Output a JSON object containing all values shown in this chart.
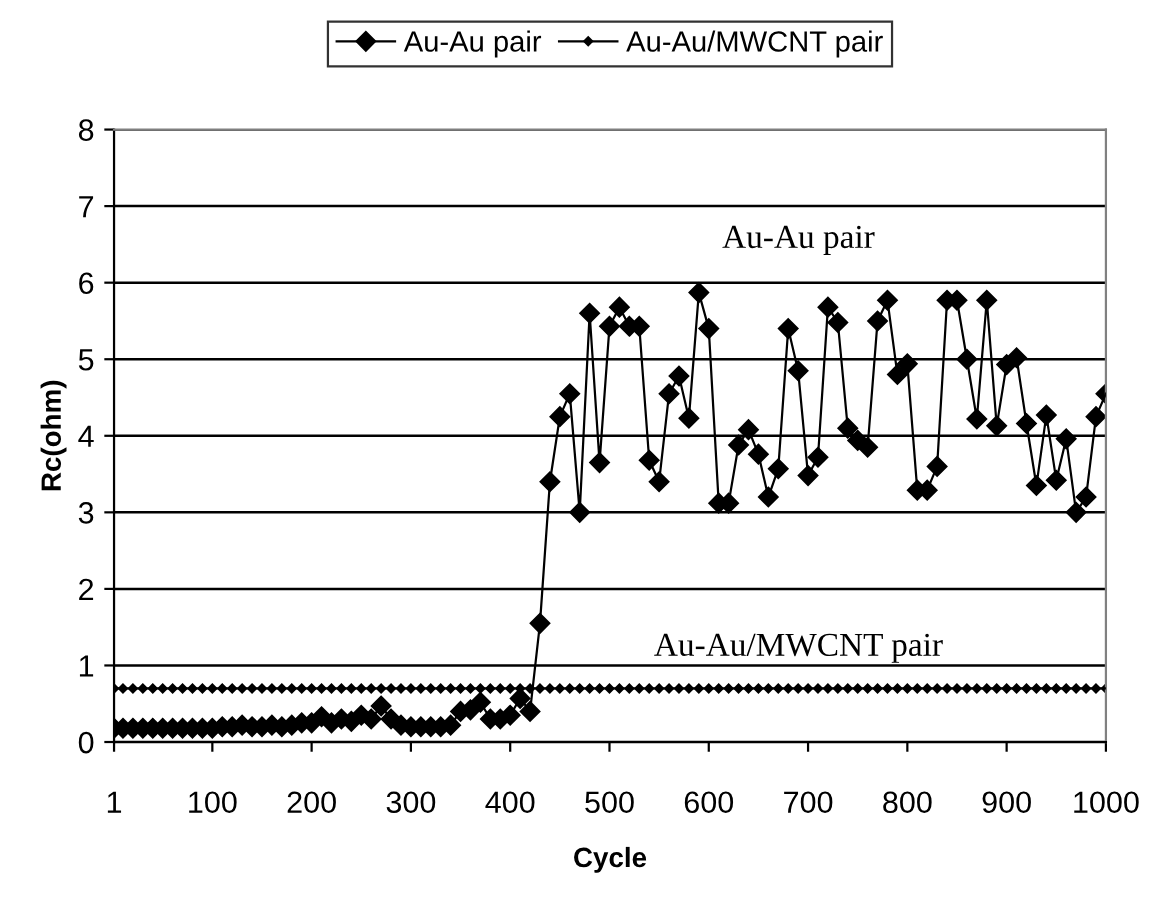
{
  "chart_data": {
    "type": "line",
    "xlabel": "Cycle",
    "ylabel": "Rc(ohm)",
    "x": [
      1,
      10,
      20,
      30,
      40,
      50,
      60,
      70,
      80,
      90,
      100,
      110,
      120,
      130,
      140,
      150,
      160,
      170,
      180,
      190,
      200,
      210,
      220,
      230,
      240,
      250,
      260,
      270,
      280,
      290,
      300,
      310,
      320,
      330,
      340,
      350,
      360,
      370,
      380,
      390,
      400,
      410,
      420,
      430,
      440,
      450,
      460,
      470,
      480,
      490,
      500,
      510,
      520,
      530,
      540,
      550,
      560,
      570,
      580,
      590,
      600,
      610,
      620,
      630,
      640,
      650,
      660,
      670,
      680,
      690,
      700,
      710,
      720,
      730,
      740,
      750,
      760,
      770,
      780,
      790,
      800,
      810,
      820,
      830,
      840,
      850,
      860,
      870,
      880,
      890,
      900,
      910,
      920,
      930,
      940,
      950,
      960,
      970,
      980,
      990,
      1000
    ],
    "series": [
      {
        "name": "Au-Au pair",
        "color": "#000000",
        "marker": "diamond",
        "values": [
          0.18,
          0.18,
          0.18,
          0.18,
          0.18,
          0.18,
          0.18,
          0.18,
          0.18,
          0.18,
          0.18,
          0.2,
          0.2,
          0.22,
          0.2,
          0.2,
          0.22,
          0.2,
          0.22,
          0.25,
          0.25,
          0.33,
          0.25,
          0.3,
          0.27,
          0.35,
          0.3,
          0.47,
          0.3,
          0.22,
          0.2,
          0.2,
          0.2,
          0.2,
          0.22,
          0.4,
          0.42,
          0.52,
          0.3,
          0.3,
          0.35,
          0.57,
          0.4,
          1.55,
          3.4,
          4.25,
          4.55,
          3.0,
          5.6,
          3.65,
          5.43,
          5.68,
          5.43,
          5.43,
          3.68,
          3.4,
          4.55,
          4.78,
          4.23,
          5.87,
          5.4,
          3.12,
          3.12,
          3.88,
          4.08,
          3.76,
          3.2,
          3.57,
          5.4,
          4.85,
          3.48,
          3.72,
          5.68,
          5.48,
          4.1,
          3.94,
          3.85,
          5.5,
          5.77,
          4.8,
          4.94,
          3.29,
          3.29,
          3.6,
          5.77,
          5.77,
          5.0,
          4.22,
          5.77,
          4.13,
          4.93,
          5.02,
          4.16,
          3.35,
          4.27,
          3.42,
          3.96,
          3.0,
          3.2,
          4.25,
          4.55
        ]
      },
      {
        "name": "Au-Au/MWCNT pair",
        "color": "#000000",
        "marker": "diamond",
        "values": [
          0.7,
          0.7,
          0.7,
          0.7,
          0.7,
          0.7,
          0.7,
          0.7,
          0.7,
          0.7,
          0.7,
          0.7,
          0.7,
          0.7,
          0.7,
          0.7,
          0.7,
          0.7,
          0.7,
          0.7,
          0.7,
          0.7,
          0.7,
          0.7,
          0.7,
          0.7,
          0.7,
          0.7,
          0.7,
          0.7,
          0.7,
          0.7,
          0.7,
          0.7,
          0.7,
          0.7,
          0.7,
          0.7,
          0.7,
          0.7,
          0.7,
          0.7,
          0.7,
          0.7,
          0.7,
          0.7,
          0.7,
          0.7,
          0.7,
          0.7,
          0.7,
          0.7,
          0.7,
          0.7,
          0.7,
          0.7,
          0.7,
          0.7,
          0.7,
          0.7,
          0.7,
          0.7,
          0.7,
          0.7,
          0.7,
          0.7,
          0.7,
          0.7,
          0.7,
          0.7,
          0.7,
          0.7,
          0.7,
          0.7,
          0.7,
          0.7,
          0.7,
          0.7,
          0.7,
          0.7,
          0.7,
          0.7,
          0.7,
          0.7,
          0.7,
          0.7,
          0.7,
          0.7,
          0.7,
          0.7,
          0.7,
          0.7,
          0.7,
          0.7,
          0.7,
          0.7,
          0.7,
          0.7,
          0.7,
          0.7,
          0.7
        ]
      }
    ],
    "annotations": [
      "Au-Au pair",
      "Au-Au/MWCNT pair"
    ],
    "xlim": [
      1,
      1000
    ],
    "xticks": [
      1,
      100,
      200,
      300,
      400,
      500,
      600,
      700,
      800,
      900,
      1000
    ],
    "ylim": [
      0,
      8
    ],
    "yticks": [
      0,
      1,
      2,
      3,
      4,
      5,
      6,
      7,
      8
    ],
    "grid": "y",
    "legend": "top",
    "line_style": "solid"
  }
}
